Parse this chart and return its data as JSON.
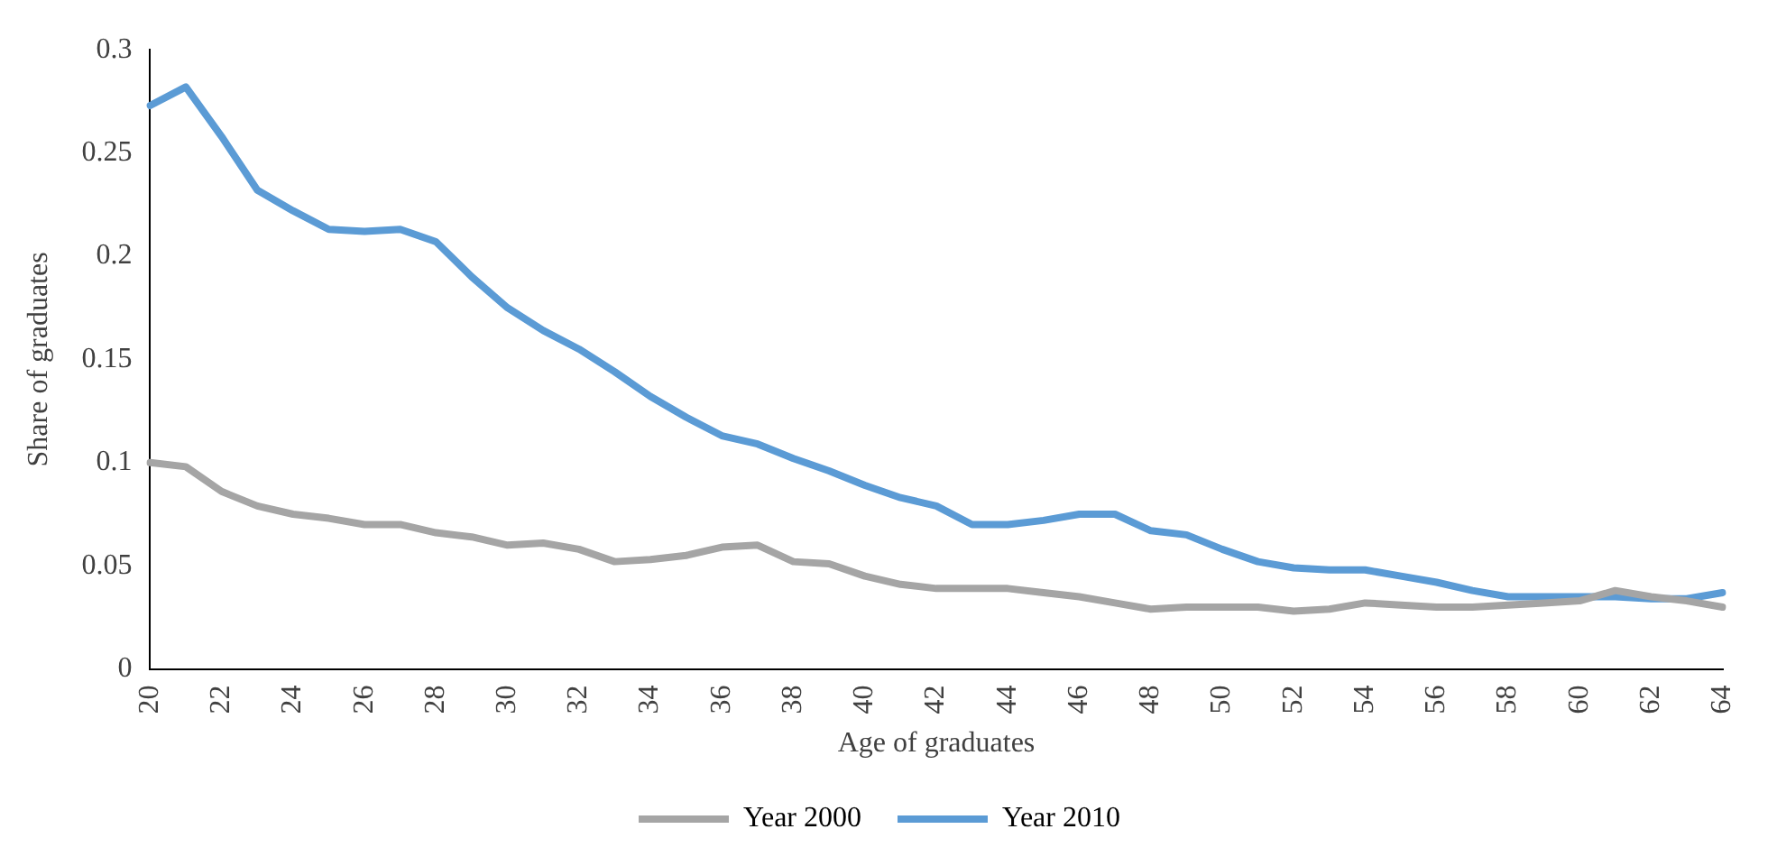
{
  "chart_data": {
    "type": "line",
    "xlabel": "Age of graduates",
    "ylabel": "Share of graduates",
    "categories": [
      "20",
      null,
      "22",
      null,
      "24",
      null,
      "26",
      null,
      "28",
      null,
      "30",
      null,
      "32",
      null,
      "34",
      null,
      "36",
      null,
      "38",
      null,
      "40",
      null,
      "42",
      null,
      "44",
      null,
      "46",
      null,
      "48",
      null,
      "50",
      null,
      "52",
      null,
      "54",
      null,
      "56",
      null,
      "58",
      null,
      "60",
      null,
      "62",
      null,
      "64"
    ],
    "series": [
      {
        "name": "Year 2000",
        "color": "#a5a5a5",
        "values": [
          0.1,
          0.098,
          0.086,
          0.079,
          0.075,
          0.073,
          0.07,
          0.07,
          0.066,
          0.064,
          0.06,
          0.061,
          0.058,
          0.052,
          0.053,
          0.055,
          0.059,
          0.06,
          0.052,
          0.051,
          0.045,
          0.041,
          0.039,
          0.039,
          0.039,
          0.037,
          0.035,
          0.032,
          0.029,
          0.03,
          0.03,
          0.03,
          0.028,
          0.029,
          0.032,
          0.031,
          0.03,
          0.03,
          0.031,
          0.032,
          0.033,
          0.038,
          0.035,
          0.033,
          0.03
        ]
      },
      {
        "name": "Year 2010",
        "color": "#5b9bd5",
        "values": [
          0.273,
          0.282,
          0.258,
          0.232,
          0.222,
          0.213,
          0.212,
          0.213,
          0.207,
          0.19,
          0.175,
          0.164,
          0.155,
          0.144,
          0.132,
          0.122,
          0.113,
          0.109,
          0.102,
          0.096,
          0.089,
          0.083,
          0.079,
          0.07,
          0.07,
          0.072,
          0.075,
          0.075,
          0.067,
          0.065,
          0.058,
          0.052,
          0.049,
          0.048,
          0.048,
          0.045,
          0.042,
          0.038,
          0.035,
          0.035,
          0.035,
          0.035,
          0.034,
          0.034,
          0.037
        ]
      }
    ],
    "ylim": [
      0,
      0.3
    ],
    "yticks": [
      0,
      0.05,
      0.1,
      0.15,
      0.2,
      0.25,
      0.3
    ],
    "grid": false,
    "legend": "bottom",
    "marker": "none",
    "line_style": "solid"
  }
}
